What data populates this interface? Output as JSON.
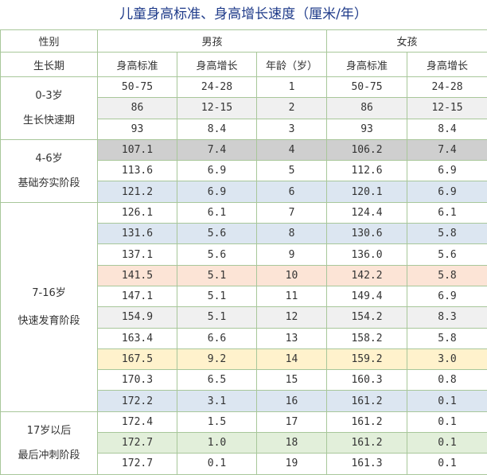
{
  "title": "儿童身高标准、身高增长速度（厘米/年）",
  "headers": {
    "gender": "性别",
    "boy": "男孩",
    "girl": "女孩",
    "period": "生长期",
    "height_std": "身高标准",
    "height_inc": "身高增长",
    "age": "年龄（岁）"
  },
  "stages": [
    {
      "age_range": "0-3岁",
      "name": "生长快速期"
    },
    {
      "age_range": "4-6岁",
      "name": "基础夯实阶段"
    },
    {
      "age_range": "7-16岁",
      "name": "快速发育阶段"
    },
    {
      "age_range": "17岁以后",
      "name": "最后冲刺阶段"
    }
  ],
  "rows": [
    {
      "boy_std": "50-75",
      "boy_inc": "24-28",
      "age": "1",
      "girl_std": "50-75",
      "girl_inc": "24-28",
      "bg": "#ffffff"
    },
    {
      "boy_std": "86",
      "boy_inc": "12-15",
      "age": "2",
      "girl_std": "86",
      "girl_inc": "12-15",
      "bg": "#f0f0f0"
    },
    {
      "boy_std": "93",
      "boy_inc": "8.4",
      "age": "3",
      "girl_std": "93",
      "girl_inc": "8.4",
      "bg": "#ffffff"
    },
    {
      "boy_std": "107.1",
      "boy_inc": "7.4",
      "age": "4",
      "girl_std": "106.2",
      "girl_inc": "7.4",
      "bg": "#cfcfcf"
    },
    {
      "boy_std": "113.6",
      "boy_inc": "6.9",
      "age": "5",
      "girl_std": "112.6",
      "girl_inc": "6.9",
      "bg": "#ffffff"
    },
    {
      "boy_std": "121.2",
      "boy_inc": "6.9",
      "age": "6",
      "girl_std": "120.1",
      "girl_inc": "6.9",
      "bg": "#dce6f1"
    },
    {
      "boy_std": "126.1",
      "boy_inc": "6.1",
      "age": "7",
      "girl_std": "124.4",
      "girl_inc": "6.1",
      "bg": "#ffffff"
    },
    {
      "boy_std": "131.6",
      "boy_inc": "5.6",
      "age": "8",
      "girl_std": "130.6",
      "girl_inc": "5.8",
      "bg": "#dce6f1"
    },
    {
      "boy_std": "137.1",
      "boy_inc": "5.6",
      "age": "9",
      "girl_std": "136.0",
      "girl_inc": "5.6",
      "bg": "#ffffff"
    },
    {
      "boy_std": "141.5",
      "boy_inc": "5.1",
      "age": "10",
      "girl_std": "142.2",
      "girl_inc": "5.8",
      "bg": "#fce4d6"
    },
    {
      "boy_std": "147.1",
      "boy_inc": "5.1",
      "age": "11",
      "girl_std": "149.4",
      "girl_inc": "6.9",
      "bg": "#ffffff"
    },
    {
      "boy_std": "154.9",
      "boy_inc": "5.1",
      "age": "12",
      "girl_std": "154.2",
      "girl_inc": "8.3",
      "bg": "#f0f0f0"
    },
    {
      "boy_std": "163.4",
      "boy_inc": "6.6",
      "age": "13",
      "girl_std": "158.2",
      "girl_inc": "5.8",
      "bg": "#ffffff"
    },
    {
      "boy_std": "167.5",
      "boy_inc": "9.2",
      "age": "14",
      "girl_std": "159.2",
      "girl_inc": "3.0",
      "bg": "#fff2cc"
    },
    {
      "boy_std": "170.3",
      "boy_inc": "6.5",
      "age": "15",
      "girl_std": "160.3",
      "girl_inc": "0.8",
      "bg": "#ffffff"
    },
    {
      "boy_std": "172.2",
      "boy_inc": "3.1",
      "age": "16",
      "girl_std": "161.2",
      "girl_inc": "0.1",
      "bg": "#dce6f1"
    },
    {
      "boy_std": "172.4",
      "boy_inc": "1.5",
      "age": "17",
      "girl_std": "161.2",
      "girl_inc": "0.1",
      "bg": "#ffffff"
    },
    {
      "boy_std": "172.7",
      "boy_inc": "1.0",
      "age": "18",
      "girl_std": "161.2",
      "girl_inc": "0.1",
      "bg": "#e2efda"
    },
    {
      "boy_std": "172.7",
      "boy_inc": "0.1",
      "age": "19",
      "girl_std": "161.3",
      "girl_inc": "0.1",
      "bg": "#ffffff"
    }
  ],
  "colors": {
    "border": "#a8c79a",
    "title": "#1f3b8a"
  }
}
